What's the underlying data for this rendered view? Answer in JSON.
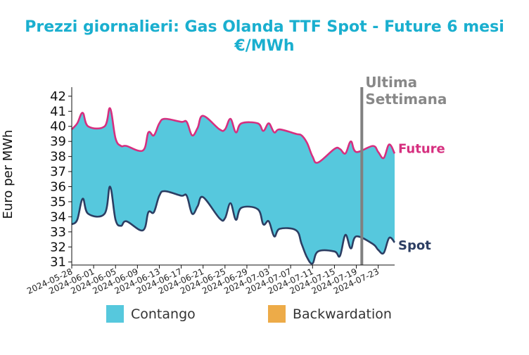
{
  "chart_data": {
    "type": "area",
    "title": "Prezzi giornalieri: Gas Olanda TTF Spot - Future 6 mesi",
    "subtitle": "€/MWh",
    "xlabel": "",
    "ylabel": "Euro per MWh",
    "ylim": [
      30.8,
      42.6
    ],
    "yticks": [
      31,
      32,
      33,
      34,
      35,
      36,
      37,
      38,
      39,
      40,
      41,
      42
    ],
    "xlim": [
      "2024-05-28",
      "2024-07-26"
    ],
    "xticks": [
      "2024-05-28",
      "2024-06-01",
      "2024-06-05",
      "2024-06-09",
      "2024-06-13",
      "2024-06-17",
      "2024-06-21",
      "2024-06-25",
      "2024-06-29",
      "2024-07-03",
      "2024-07-07",
      "2024-07-11",
      "2024-07-15",
      "2024-07-19",
      "2024-07-23"
    ],
    "grid": false,
    "legend_position": "bottom",
    "series": [
      {
        "name": "Future",
        "color": "#d62f7f",
        "x": [
          "2024-05-28",
          "2024-05-29",
          "2024-05-30",
          "2024-05-31",
          "2024-06-03",
          "2024-06-04",
          "2024-06-05",
          "2024-06-06",
          "2024-06-07",
          "2024-06-10",
          "2024-06-11",
          "2024-06-12",
          "2024-06-13",
          "2024-06-14",
          "2024-06-17",
          "2024-06-18",
          "2024-06-19",
          "2024-06-20",
          "2024-06-21",
          "2024-06-24",
          "2024-06-25",
          "2024-06-26",
          "2024-06-27",
          "2024-06-28",
          "2024-07-01",
          "2024-07-02",
          "2024-07-03",
          "2024-07-04",
          "2024-07-05",
          "2024-07-08",
          "2024-07-09",
          "2024-07-10",
          "2024-07-11",
          "2024-07-12",
          "2024-07-15",
          "2024-07-16",
          "2024-07-17",
          "2024-07-18",
          "2024-07-19",
          "2024-07-22",
          "2024-07-23",
          "2024-07-24",
          "2024-07-25",
          "2024-07-26"
        ],
        "values": [
          39.8,
          40.2,
          40.9,
          40.0,
          40.0,
          41.2,
          39.2,
          38.7,
          38.7,
          38.4,
          39.6,
          39.4,
          40.2,
          40.5,
          40.3,
          40.3,
          39.4,
          39.9,
          40.7,
          39.8,
          39.8,
          40.5,
          39.6,
          40.2,
          40.2,
          39.7,
          40.2,
          39.6,
          39.8,
          39.5,
          39.4,
          38.9,
          38.0,
          37.6,
          38.5,
          38.5,
          38.2,
          39.0,
          38.3,
          38.7,
          38.3,
          37.9,
          38.8,
          38.2
        ]
      },
      {
        "name": "Spot",
        "color": "#2c3e63",
        "x": [
          "2024-05-28",
          "2024-05-29",
          "2024-05-30",
          "2024-05-31",
          "2024-06-03",
          "2024-06-04",
          "2024-06-05",
          "2024-06-06",
          "2024-06-07",
          "2024-06-10",
          "2024-06-11",
          "2024-06-12",
          "2024-06-13",
          "2024-06-14",
          "2024-06-17",
          "2024-06-18",
          "2024-06-19",
          "2024-06-20",
          "2024-06-21",
          "2024-06-24",
          "2024-06-25",
          "2024-06-26",
          "2024-06-27",
          "2024-06-28",
          "2024-07-01",
          "2024-07-02",
          "2024-07-03",
          "2024-07-04",
          "2024-07-05",
          "2024-07-08",
          "2024-07-09",
          "2024-07-10",
          "2024-07-11",
          "2024-07-12",
          "2024-07-15",
          "2024-07-16",
          "2024-07-17",
          "2024-07-18",
          "2024-07-19",
          "2024-07-22",
          "2024-07-23",
          "2024-07-24",
          "2024-07-25",
          "2024-07-26"
        ],
        "values": [
          33.5,
          33.8,
          35.2,
          34.2,
          34.2,
          36.0,
          33.8,
          33.4,
          33.7,
          33.1,
          34.3,
          34.3,
          35.4,
          35.7,
          35.4,
          35.4,
          34.2,
          34.7,
          35.3,
          33.9,
          33.9,
          34.9,
          33.8,
          34.6,
          34.5,
          33.5,
          33.7,
          32.7,
          33.2,
          33.1,
          32.2,
          31.3,
          30.9,
          31.7,
          31.7,
          31.4,
          32.8,
          31.9,
          32.7,
          32.2,
          31.8,
          31.6,
          32.6,
          32.3
        ]
      }
    ],
    "fill_colors": {
      "contango": "#56c8dd",
      "backwardation": "#edab48"
    },
    "annotations": [
      {
        "text": "Ultima Settimana",
        "lines": [
          "Ultima",
          "Settimana"
        ],
        "x": "2024-07-20",
        "color": "#808080"
      }
    ],
    "legend": [
      {
        "label": "Contango",
        "color": "#56c8dd"
      },
      {
        "label": "Backwardation",
        "color": "#edab48"
      }
    ],
    "end_labels": [
      {
        "text": "Future",
        "color": "#d62f7f"
      },
      {
        "text": "Spot",
        "color": "#2c3e63"
      }
    ]
  }
}
